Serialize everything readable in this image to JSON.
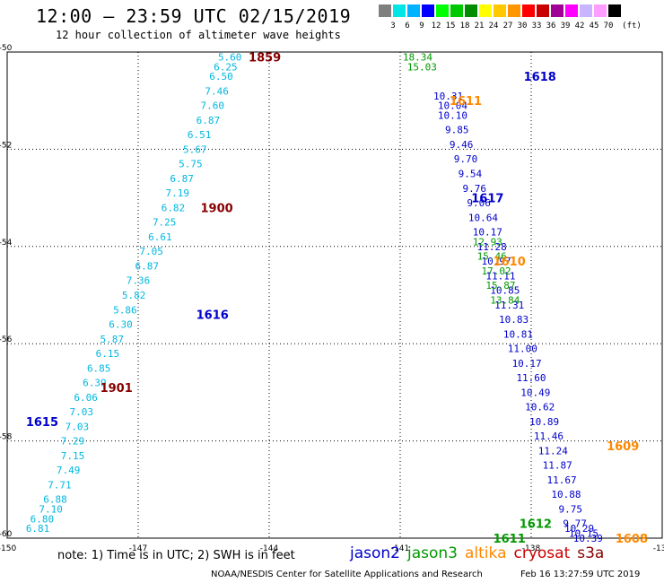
{
  "header": {
    "title": "12:00 – 23:59 UTC 02/15/2019",
    "subtitle": "12 hour collection of altimeter wave heights"
  },
  "colorbar": {
    "unit": "(ft)",
    "bins": [
      {
        "color": "#7f7f7f",
        "label": "3"
      },
      {
        "color": "#00e5e5",
        "label": "6"
      },
      {
        "color": "#00b2ff",
        "label": "9"
      },
      {
        "color": "#0000ff",
        "label": "12"
      },
      {
        "color": "#00ff00",
        "label": "15"
      },
      {
        "color": "#00c800",
        "label": "18"
      },
      {
        "color": "#008c00",
        "label": "21"
      },
      {
        "color": "#ffff00",
        "label": "24"
      },
      {
        "color": "#ffc800",
        "label": "27"
      },
      {
        "color": "#ff9600",
        "label": "30"
      },
      {
        "color": "#ff0000",
        "label": "33"
      },
      {
        "color": "#c80000",
        "label": "36"
      },
      {
        "color": "#a00096",
        "label": "39"
      },
      {
        "color": "#ff00ff",
        "label": "42"
      },
      {
        "color": "#c8b4ff",
        "label": "45"
      },
      {
        "color": "#ff9cff",
        "label": "70"
      },
      {
        "color": "#000000",
        "label": ""
      }
    ]
  },
  "map": {
    "lon_range": [
      -150,
      -135
    ],
    "lat_range": [
      -60,
      -50
    ],
    "lon_ticks": [
      "-150",
      "-147",
      "-144",
      "-141",
      "-138",
      "-135"
    ],
    "lat_ticks": [
      "-50",
      "-52",
      "-54",
      "-56",
      "-58",
      "-60"
    ],
    "grid": "dotted"
  },
  "chart_data": {
    "type": "scatter",
    "x_label": "",
    "y_label": "",
    "xlim": [
      -150,
      -135
    ],
    "ylim": [
      -60,
      -50
    ],
    "series": [
      {
        "name": "altika",
        "color": "#00b8e0",
        "points": [
          {
            "lon": -144.9,
            "lat": -50.1,
            "v": "5.60"
          },
          {
            "lon": -145.0,
            "lat": -50.3,
            "v": "6.25"
          },
          {
            "lon": -145.1,
            "lat": -50.5,
            "v": "6.50"
          },
          {
            "lon": -145.2,
            "lat": -50.8,
            "v": "7.46"
          },
          {
            "lon": -145.3,
            "lat": -51.1,
            "v": "7.60"
          },
          {
            "lon": -145.4,
            "lat": -51.4,
            "v": "6.87"
          },
          {
            "lon": -145.6,
            "lat": -51.7,
            "v": "6.51"
          },
          {
            "lon": -145.7,
            "lat": -52.0,
            "v": "5.67"
          },
          {
            "lon": -145.8,
            "lat": -52.3,
            "v": "5.75"
          },
          {
            "lon": -146.0,
            "lat": -52.6,
            "v": "6.87"
          },
          {
            "lon": -146.1,
            "lat": -52.9,
            "v": "7.19"
          },
          {
            "lon": -146.2,
            "lat": -53.2,
            "v": "6.82"
          },
          {
            "lon": -146.4,
            "lat": -53.5,
            "v": "7.25"
          },
          {
            "lon": -146.5,
            "lat": -53.8,
            "v": "6.61"
          },
          {
            "lon": -146.7,
            "lat": -54.1,
            "v": "7.05"
          },
          {
            "lon": -146.8,
            "lat": -54.4,
            "v": "6.87"
          },
          {
            "lon": -147.0,
            "lat": -54.7,
            "v": "7.36"
          },
          {
            "lon": -147.1,
            "lat": -55.0,
            "v": "5.82"
          },
          {
            "lon": -147.3,
            "lat": -55.3,
            "v": "5.86"
          },
          {
            "lon": -147.4,
            "lat": -55.6,
            "v": "6.30"
          },
          {
            "lon": -147.6,
            "lat": -55.9,
            "v": "5.87"
          },
          {
            "lon": -147.7,
            "lat": -56.2,
            "v": "6.15"
          },
          {
            "lon": -147.9,
            "lat": -56.5,
            "v": "6.85"
          },
          {
            "lon": -148.0,
            "lat": -56.8,
            "v": "6.39"
          },
          {
            "lon": -148.2,
            "lat": -57.1,
            "v": "6.06"
          },
          {
            "lon": -148.3,
            "lat": -57.4,
            "v": "7.03"
          },
          {
            "lon": -148.4,
            "lat": -57.7,
            "v": "7.03"
          },
          {
            "lon": -148.5,
            "lat": -58.0,
            "v": "7.29"
          },
          {
            "lon": -148.5,
            "lat": -58.3,
            "v": "7.15"
          },
          {
            "lon": -148.6,
            "lat": -58.6,
            "v": "7.49"
          },
          {
            "lon": -148.8,
            "lat": -58.9,
            "v": "7.71"
          },
          {
            "lon": -148.9,
            "lat": -59.2,
            "v": "6.88"
          },
          {
            "lon": -149.0,
            "lat": -59.4,
            "v": "7.10"
          },
          {
            "lon": -149.2,
            "lat": -59.6,
            "v": "6.80"
          },
          {
            "lon": -149.3,
            "lat": -59.8,
            "v": "6.81"
          }
        ]
      },
      {
        "name": "jason2",
        "color": "#0000cc",
        "points": [
          {
            "lon": -139.9,
            "lat": -50.9,
            "v": "10.31"
          },
          {
            "lon": -139.8,
            "lat": -51.1,
            "v": "10.04"
          },
          {
            "lon": -139.8,
            "lat": -51.3,
            "v": "10.10"
          },
          {
            "lon": -139.7,
            "lat": -51.6,
            "v": "9.85"
          },
          {
            "lon": -139.6,
            "lat": -51.9,
            "v": "9.46"
          },
          {
            "lon": -139.5,
            "lat": -52.2,
            "v": "9.70"
          },
          {
            "lon": -139.4,
            "lat": -52.5,
            "v": "9.54"
          },
          {
            "lon": -139.3,
            "lat": -52.8,
            "v": "9.76"
          },
          {
            "lon": -139.2,
            "lat": -53.1,
            "v": "9.06"
          },
          {
            "lon": -139.1,
            "lat": -53.4,
            "v": "10.64"
          },
          {
            "lon": -139.0,
            "lat": -53.7,
            "v": "10.17"
          },
          {
            "lon": -138.9,
            "lat": -54.0,
            "v": "11.28"
          },
          {
            "lon": -138.8,
            "lat": -54.3,
            "v": "10.97"
          },
          {
            "lon": -138.7,
            "lat": -54.6,
            "v": "11.11"
          },
          {
            "lon": -138.6,
            "lat": -54.9,
            "v": "10.85"
          },
          {
            "lon": -138.5,
            "lat": -55.2,
            "v": "11.31"
          },
          {
            "lon": -138.4,
            "lat": -55.5,
            "v": "10.83"
          },
          {
            "lon": -138.3,
            "lat": -55.8,
            "v": "10.81"
          },
          {
            "lon": -138.2,
            "lat": -56.1,
            "v": "11.00"
          },
          {
            "lon": -138.1,
            "lat": -56.4,
            "v": "10.17"
          },
          {
            "lon": -138.0,
            "lat": -56.7,
            "v": "11.60"
          },
          {
            "lon": -137.9,
            "lat": -57.0,
            "v": "10.49"
          },
          {
            "lon": -137.8,
            "lat": -57.3,
            "v": "10.62"
          },
          {
            "lon": -137.7,
            "lat": -57.6,
            "v": "10.89"
          },
          {
            "lon": -137.6,
            "lat": -57.9,
            "v": "11.46"
          },
          {
            "lon": -137.5,
            "lat": -58.2,
            "v": "11.24"
          },
          {
            "lon": -137.4,
            "lat": -58.5,
            "v": "11.87"
          },
          {
            "lon": -137.3,
            "lat": -58.8,
            "v": "11.67"
          },
          {
            "lon": -137.2,
            "lat": -59.1,
            "v": "10.88"
          },
          {
            "lon": -137.1,
            "lat": -59.4,
            "v": "9.75"
          },
          {
            "lon": -137.0,
            "lat": -59.7,
            "v": "9.77"
          },
          {
            "lon": -136.9,
            "lat": -59.8,
            "v": "10.29"
          },
          {
            "lon": -136.8,
            "lat": -59.9,
            "v": "10.15"
          },
          {
            "lon": -136.7,
            "lat": -60.0,
            "v": "10.39"
          }
        ]
      },
      {
        "name": "jason3",
        "color": "#009900",
        "points": [
          {
            "lon": -140.6,
            "lat": -50.1,
            "v": "18.34"
          },
          {
            "lon": -140.5,
            "lat": -50.3,
            "v": "15.03"
          },
          {
            "lon": -139.0,
            "lat": -53.9,
            "v": "12.93"
          },
          {
            "lon": -138.9,
            "lat": -54.2,
            "v": "15.46"
          },
          {
            "lon": -138.8,
            "lat": -54.5,
            "v": "17.02"
          },
          {
            "lon": -138.7,
            "lat": -54.8,
            "v": "15.87"
          },
          {
            "lon": -138.6,
            "lat": -55.1,
            "v": "13.84"
          }
        ]
      }
    ],
    "pass_labels": [
      {
        "text": "1859",
        "color": "#880000",
        "lon": -144.1,
        "lat": -50.1
      },
      {
        "text": "1611",
        "color": "#ff8800",
        "lon": -139.5,
        "lat": -51.0
      },
      {
        "text": "1618",
        "color": "#0000cc",
        "lon": -137.8,
        "lat": -50.5
      },
      {
        "text": "1900",
        "color": "#880000",
        "lon": -145.2,
        "lat": -53.2
      },
      {
        "text": "1617",
        "color": "#0000cc",
        "lon": -139.0,
        "lat": -53.0
      },
      {
        "text": "1610",
        "color": "#ff8800",
        "lon": -138.5,
        "lat": -54.3
      },
      {
        "text": "1616",
        "color": "#0000cc",
        "lon": -145.3,
        "lat": -55.4
      },
      {
        "text": "1901",
        "color": "#880000",
        "lon": -147.5,
        "lat": -56.9
      },
      {
        "text": "1615",
        "color": "#0000cc",
        "lon": -149.2,
        "lat": -57.6
      },
      {
        "text": "1609",
        "color": "#ff8800",
        "lon": -135.9,
        "lat": -58.1
      },
      {
        "text": "1612",
        "color": "#009900",
        "lon": -137.9,
        "lat": -59.7
      },
      {
        "text": "1611",
        "color": "#009900",
        "lon": -138.5,
        "lat": -60.0
      },
      {
        "text": "1608",
        "color": "#ff8800",
        "lon": -135.7,
        "lat": -60.0
      }
    ]
  },
  "footer": {
    "note": "note: 1) Time is in UTC; 2) SWH is in feet",
    "legend": [
      {
        "name": "jason2",
        "color": "#0000cc"
      },
      {
        "name": "jason3",
        "color": "#009900"
      },
      {
        "name": "altika",
        "color": "#ff8800"
      },
      {
        "name": "cryosat",
        "color": "#cc0000"
      },
      {
        "name": "s3a",
        "color": "#880000"
      }
    ],
    "credit": "NOAA/NESDIS Center for Satellite Applications and Research",
    "timestamp": "Feb 16 13:27:59 UTC 2019"
  }
}
